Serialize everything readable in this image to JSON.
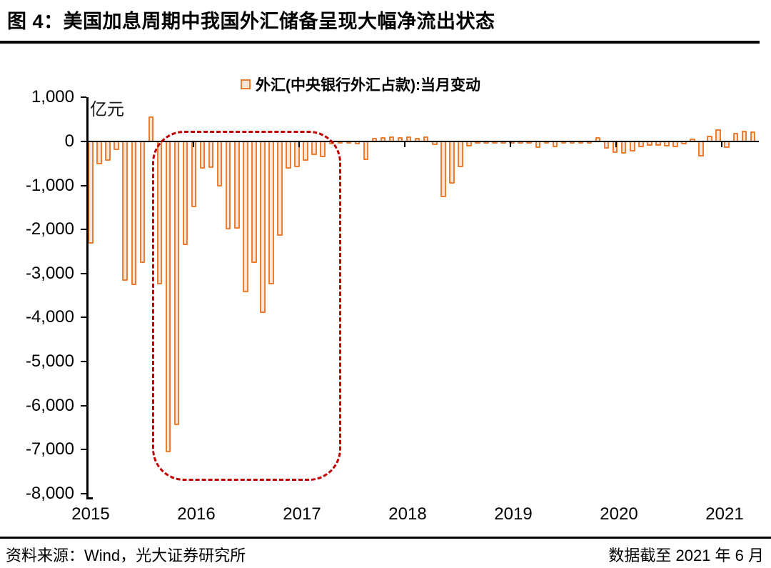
{
  "title": "图 4：美国加息周期中我国外汇储备呈现大幅净流出状态",
  "legend": {
    "label": "外汇(中央银行外汇占款):当月变动"
  },
  "unit_label": "亿元",
  "footer": {
    "source": "资料来源：Wind，光大证券研究所",
    "note": "数据截至 2021 年 6 月"
  },
  "colors": {
    "bar_fill": "#FBE5D6",
    "bar_border": "#ED7D31",
    "highlight_box": "#C00000",
    "axis": "#000000"
  },
  "chart_data": {
    "type": "bar",
    "title": "外汇(中央银行外汇占款):当月变动",
    "xlabel": "",
    "ylabel": "亿元",
    "ylim": [
      -8000,
      1000
    ],
    "grid": false,
    "legend_position": "top-center",
    "y_ticks": [
      1000,
      0,
      -1000,
      -2000,
      -3000,
      -4000,
      -5000,
      -6000,
      -7000,
      -8000
    ],
    "y_tick_labels": [
      "1,000",
      "0",
      "-1,000",
      "-2,000",
      "-3,000",
      "-4,000",
      "-5,000",
      "-6,000",
      "-7,000",
      "-8,000"
    ],
    "x_year_labels": [
      "2015",
      "2016",
      "2017",
      "2018",
      "2019",
      "2020",
      "2021"
    ],
    "series": [
      {
        "year": 2015,
        "values": [
          -2300,
          -500,
          -415,
          -180,
          -3150,
          -3250,
          -2740,
          550,
          -3230,
          -7050,
          -6420,
          -2330
        ]
      },
      {
        "year": 2016,
        "values": [
          -1470,
          -600,
          -585,
          -1010,
          -1980,
          -1970,
          -3410,
          -2740,
          -3880,
          -3230,
          -2120,
          -600
        ]
      },
      {
        "year": 2017,
        "values": [
          -565,
          -425,
          -290,
          -345,
          -40,
          -15,
          -10,
          -45,
          -410,
          60,
          85,
          95
        ]
      },
      {
        "year": 2018,
        "values": [
          85,
          95,
          60,
          100,
          -65,
          -1250,
          -940,
          -575,
          -100,
          -25,
          -20,
          -25
        ]
      },
      {
        "year": 2019,
        "values": [
          -30,
          -25,
          -30,
          -25,
          -130,
          -30,
          -115,
          -35,
          -30,
          -35,
          -25,
          85
        ]
      },
      {
        "year": 2020,
        "values": [
          -150,
          -240,
          -260,
          -205,
          -115,
          -75,
          -85,
          -95,
          -115,
          -50,
          45,
          -330
        ]
      },
      {
        "year": 2021,
        "values": [
          115,
          265,
          -125,
          185,
          220,
          210
        ]
      }
    ],
    "highlight": {
      "style": "red-dashed-rounded-box",
      "start_month": "2015-09",
      "end_month": "2017-05"
    }
  }
}
